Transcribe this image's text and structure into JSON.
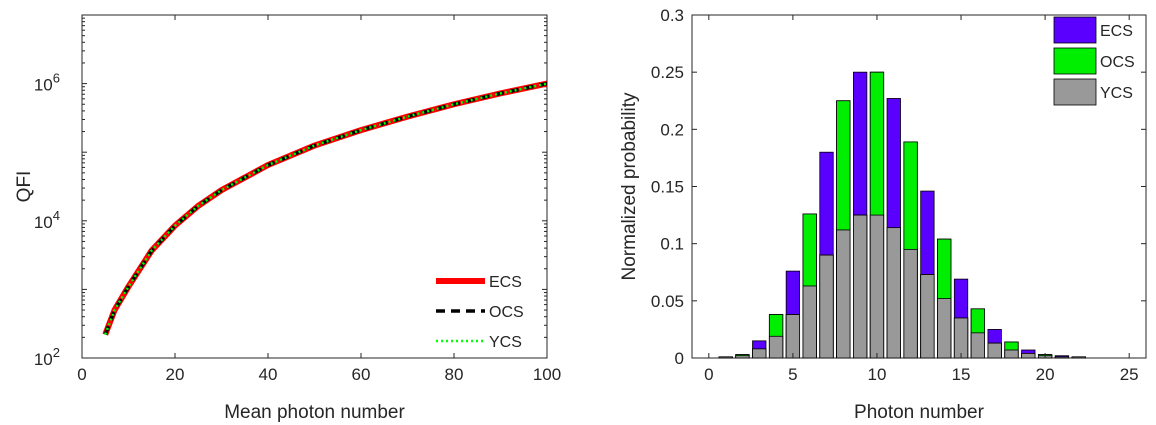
{
  "chart_data": [
    {
      "type": "line",
      "xlabel": "Mean photon number",
      "ylabel": "QFI",
      "xlim": [
        0,
        100
      ],
      "ylim": [
        100,
        10000000
      ],
      "yscale": "log",
      "xticks": [
        "0",
        "20",
        "40",
        "60",
        "80",
        "100"
      ],
      "yticks": [
        {
          "base": "10",
          "exp": "2"
        },
        {
          "base": "10",
          "exp": "4"
        },
        {
          "base": "10",
          "exp": "6"
        }
      ],
      "grid": false,
      "legend_position": "bottom-right",
      "x": [
        5,
        7,
        10,
        15,
        20,
        25,
        30,
        40,
        50,
        60,
        70,
        80,
        90,
        100
      ],
      "series": [
        {
          "name": "ECS",
          "color": "#ff0000",
          "style": "solid",
          "values": [
            220,
            500,
            1100,
            3700,
            8500,
            16500,
            28000,
            65000,
            125000,
            210000,
            330000,
            500000,
            720000,
            1000000
          ]
        },
        {
          "name": "OCS",
          "color": "#000000",
          "style": "dashed",
          "values": [
            220,
            500,
            1100,
            3700,
            8500,
            16500,
            28000,
            65000,
            125000,
            210000,
            330000,
            500000,
            720000,
            1000000
          ]
        },
        {
          "name": "YCS",
          "color": "#00ff00",
          "style": "dotted",
          "values": [
            220,
            500,
            1100,
            3700,
            8500,
            16500,
            28000,
            65000,
            125000,
            210000,
            330000,
            500000,
            720000,
            1000000
          ]
        }
      ]
    },
    {
      "type": "bar",
      "xlabel": "Photon number",
      "ylabel": "Normalized probability",
      "xlim": [
        -1,
        26
      ],
      "ylim": [
        0,
        0.3
      ],
      "xticks": [
        "0",
        "5",
        "10",
        "15",
        "20",
        "25"
      ],
      "yticks": [
        "0",
        "0.05",
        "0.1",
        "0.15",
        "0.2",
        "0.25",
        "0.3"
      ],
      "grid": false,
      "legend_position": "top-right",
      "categories": [
        0,
        1,
        2,
        3,
        4,
        5,
        6,
        7,
        8,
        9,
        10,
        11,
        12,
        13,
        14,
        15,
        16,
        17,
        18,
        19,
        20,
        21,
        22,
        23,
        24,
        25
      ],
      "series": [
        {
          "name": "ECS",
          "color": "#5a00ff",
          "values": [
            0,
            0.001,
            0.003,
            0.015,
            0.038,
            0.076,
            0.126,
            0.18,
            0.225,
            0.25,
            0.25,
            0.227,
            0.189,
            0.146,
            0.104,
            0.069,
            0.043,
            0.025,
            0.014,
            0.007,
            0.003,
            0.002,
            0.001,
            0,
            0,
            0
          ]
        },
        {
          "name": "OCS",
          "color": "#00ee00",
          "values": [
            0,
            0.001,
            0.003,
            0.008,
            0.038,
            0.038,
            0.126,
            0.09,
            0.225,
            0.125,
            0.25,
            0.113,
            0.189,
            0.073,
            0.104,
            0.035,
            0.043,
            0.013,
            0.014,
            0.004,
            0.003,
            0.001,
            0.001,
            0,
            0,
            0
          ]
        },
        {
          "name": "YCS",
          "color": "#999999",
          "values": [
            0,
            0.001,
            0.002,
            0.008,
            0.019,
            0.038,
            0.063,
            0.09,
            0.112,
            0.125,
            0.125,
            0.114,
            0.095,
            0.073,
            0.052,
            0.035,
            0.022,
            0.013,
            0.007,
            0.004,
            0.002,
            0.001,
            0.001,
            0,
            0,
            0
          ]
        }
      ]
    }
  ]
}
